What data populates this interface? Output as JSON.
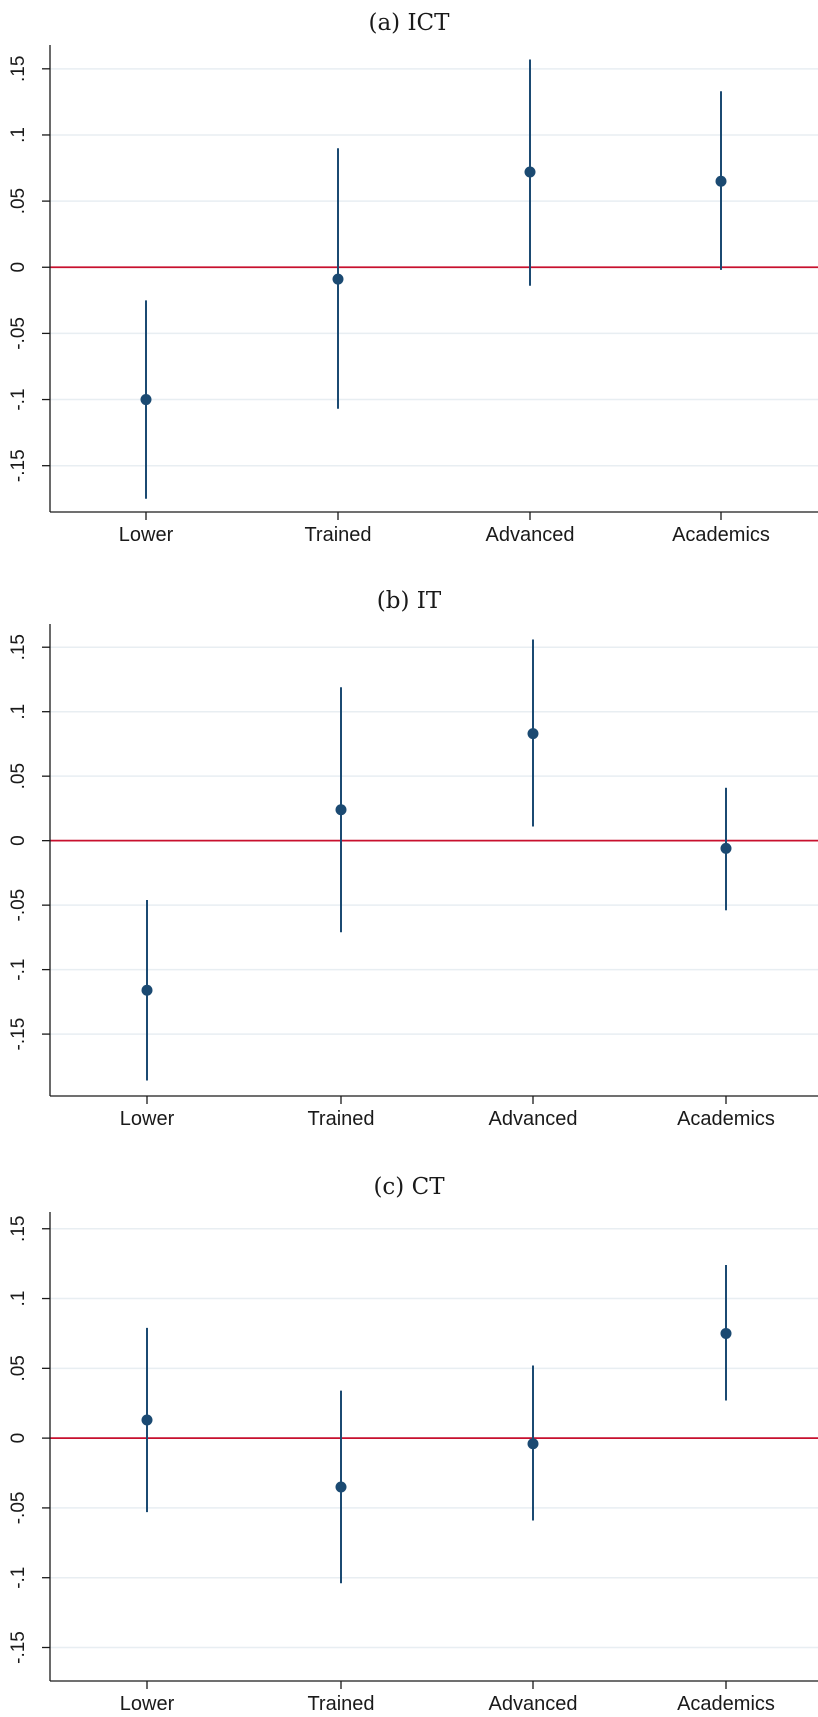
{
  "chart_data": [
    {
      "type": "scatter",
      "title": "(a) ICT",
      "categories": [
        "Lower",
        "Trained",
        "Advanced",
        "Academics"
      ],
      "ylim": [
        -0.185,
        0.168
      ],
      "yticks": [
        0.15,
        0.1,
        0.05,
        0,
        -0.05,
        -0.1,
        -0.15
      ],
      "ytick_labels": [
        ".15",
        ".1",
        ".05",
        "0",
        "-.05",
        "-.1",
        "-.15"
      ],
      "reference_line": 0,
      "grid": true,
      "estimates": [
        -0.1,
        -0.009,
        0.072,
        0.065
      ],
      "ci_lower": [
        -0.175,
        -0.107,
        -0.014,
        -0.002
      ],
      "ci_upper": [
        -0.025,
        0.09,
        0.157,
        0.133
      ],
      "colors": {
        "marker": "#1b4a72",
        "reference": "#c8102e",
        "grid": "#e8eef2",
        "axis": "#1a1a1a"
      }
    },
    {
      "type": "scatter",
      "title": "(b) IT",
      "categories": [
        "Lower",
        "Trained",
        "Advanced",
        "Academics"
      ],
      "ylim": [
        -0.198,
        0.168
      ],
      "yticks": [
        0.15,
        0.1,
        0.05,
        0,
        -0.05,
        -0.1,
        -0.15
      ],
      "ytick_labels": [
        ".15",
        ".1",
        ".05",
        "0",
        "-.05",
        "-.1",
        "-.15"
      ],
      "reference_line": 0,
      "grid": true,
      "estimates": [
        -0.116,
        0.024,
        0.083,
        -0.006
      ],
      "ci_lower": [
        -0.186,
        -0.071,
        0.011,
        -0.054
      ],
      "ci_upper": [
        -0.046,
        0.119,
        0.156,
        0.041
      ],
      "colors": {
        "marker": "#1b4a72",
        "reference": "#c8102e",
        "grid": "#e8eef2",
        "axis": "#1a1a1a"
      }
    },
    {
      "type": "scatter",
      "title": "(c) CT",
      "categories": [
        "Lower",
        "Trained",
        "Advanced",
        "Academics"
      ],
      "ylim": [
        -0.174,
        0.162
      ],
      "yticks": [
        0.15,
        0.1,
        0.05,
        0,
        -0.05,
        -0.1,
        -0.15
      ],
      "ytick_labels": [
        ".15",
        ".1",
        ".05",
        "0",
        "-.05",
        "-.1",
        "-.15"
      ],
      "reference_line": 0,
      "grid": true,
      "estimates": [
        0.013,
        -0.035,
        -0.004,
        0.075
      ],
      "ci_lower": [
        -0.053,
        -0.104,
        -0.059,
        0.027
      ],
      "ci_upper": [
        0.079,
        0.034,
        0.052,
        0.124
      ],
      "colors": {
        "marker": "#1b4a72",
        "reference": "#c8102e",
        "grid": "#e8eef2",
        "axis": "#1a1a1a"
      }
    }
  ]
}
